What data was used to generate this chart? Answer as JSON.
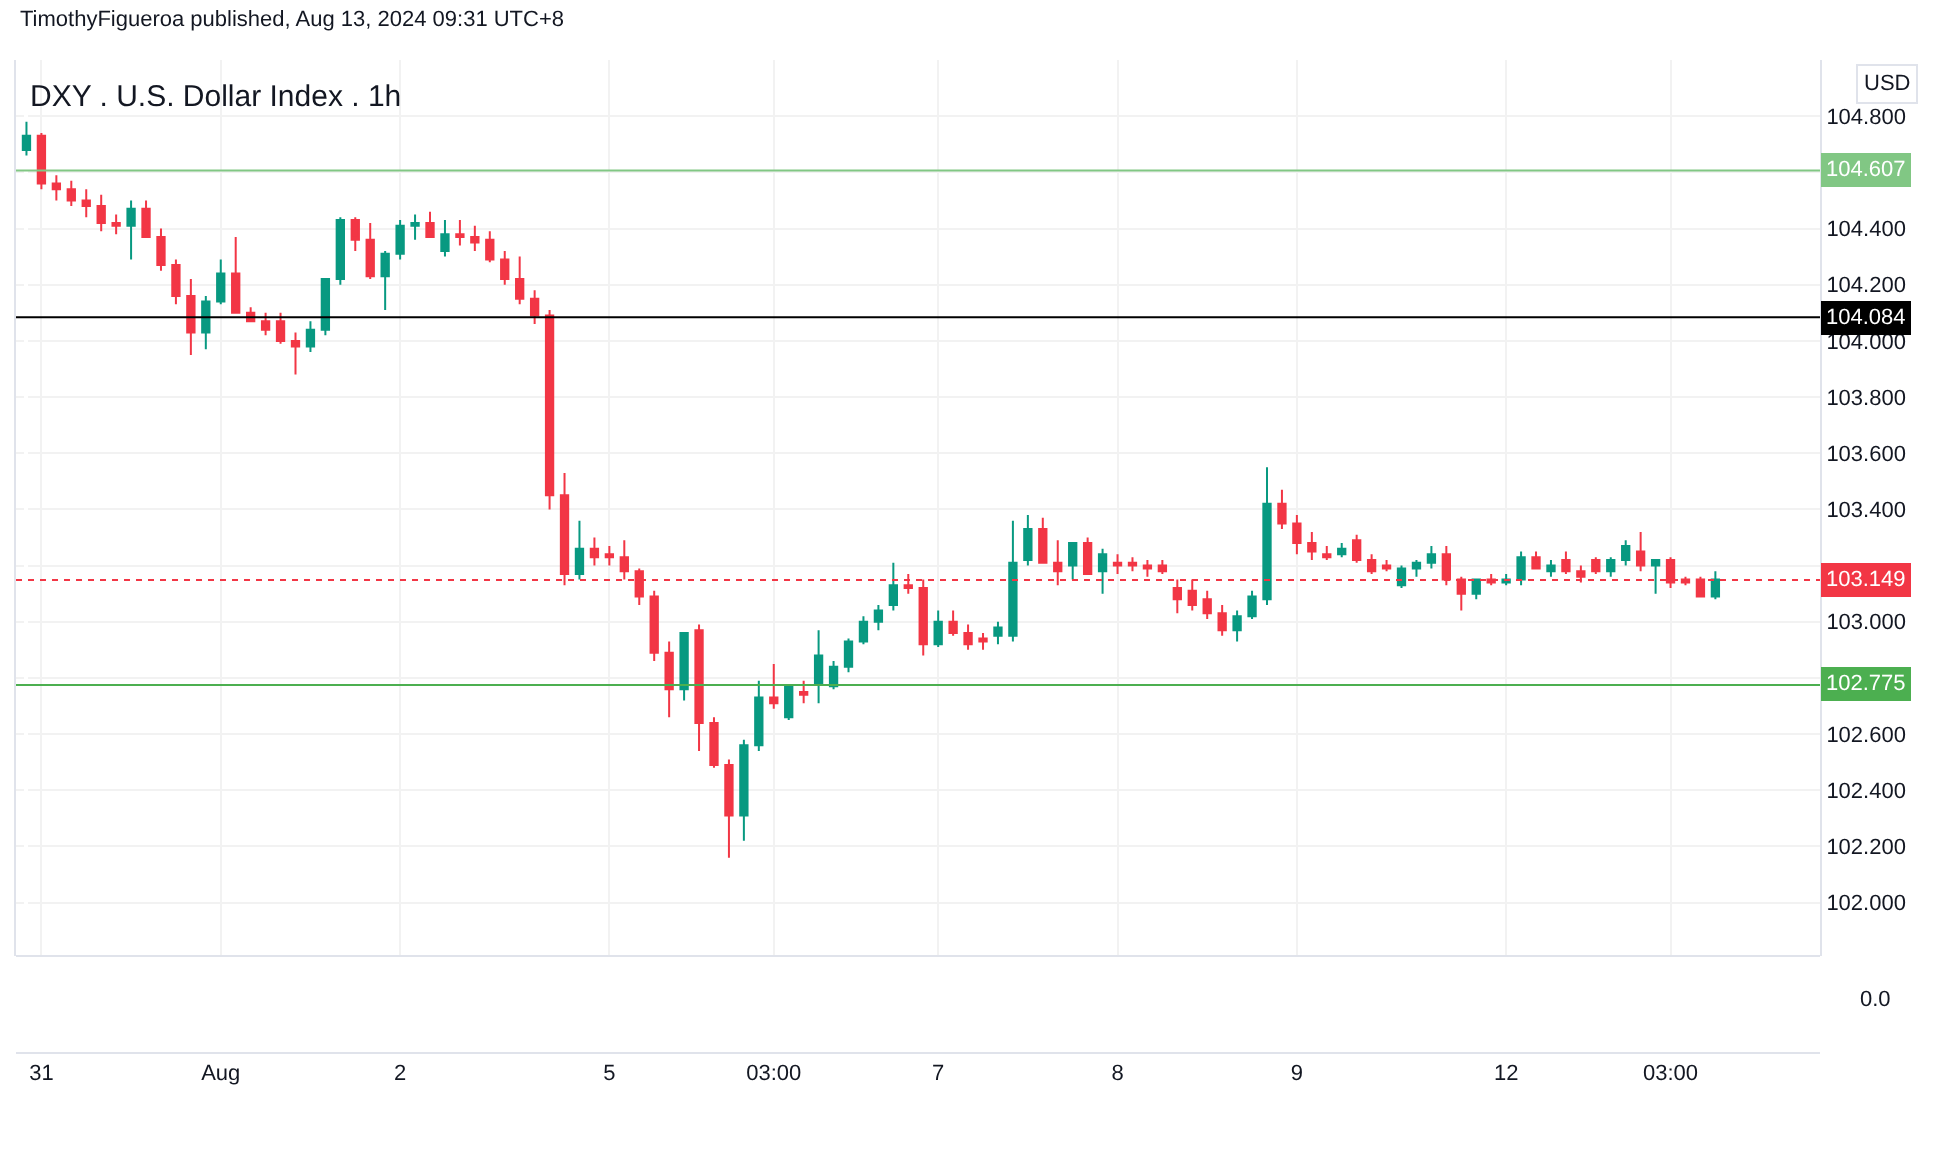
{
  "chart_data": {
    "type": "candlestick",
    "title": "DXY . U.S. Dollar Index . 1h",
    "subtitle": "TimothyFigueroa published, Aug 13, 2024 09:31 UTC+8",
    "categories": [
      null,
      "31",
      null,
      null,
      null,
      null,
      null,
      null,
      null,
      null,
      null,
      null,
      null,
      "Aug",
      null,
      null,
      null,
      null,
      null,
      null,
      null,
      null,
      null,
      null,
      null,
      "2",
      null,
      null,
      null,
      null,
      null,
      null,
      null,
      null,
      null,
      null,
      null,
      null,
      null,
      "5",
      null,
      null,
      null,
      null,
      null,
      null,
      null,
      null,
      null,
      null,
      "03:00",
      null,
      null,
      null,
      null,
      null,
      null,
      null,
      null,
      null,
      null,
      "7",
      null,
      null,
      null,
      null,
      null,
      null,
      null,
      null,
      null,
      null,
      null,
      "8",
      null,
      null,
      null,
      null,
      null,
      null,
      null,
      null,
      null,
      null,
      null,
      "9",
      null,
      null,
      null,
      null,
      null,
      null,
      null,
      null,
      null,
      null,
      null,
      null,
      null,
      "12",
      null,
      null,
      null,
      null,
      null,
      null,
      null,
      null,
      null,
      null,
      "03:00",
      null,
      null,
      null
    ],
    "ohlc": [
      [
        104.68,
        104.78,
        104.66,
        104.73
      ],
      [
        104.73,
        104.74,
        104.54,
        104.56
      ],
      [
        104.56,
        104.59,
        104.5,
        104.54
      ],
      [
        104.54,
        104.57,
        104.48,
        104.5
      ],
      [
        104.5,
        104.54,
        104.44,
        104.48
      ],
      [
        104.48,
        104.52,
        104.39,
        104.42
      ],
      [
        104.42,
        104.45,
        104.38,
        104.41
      ],
      [
        104.41,
        104.5,
        104.29,
        104.47
      ],
      [
        104.47,
        104.5,
        104.37,
        104.37
      ],
      [
        104.37,
        104.4,
        104.25,
        104.27
      ],
      [
        104.27,
        104.29,
        104.13,
        104.16
      ],
      [
        104.16,
        104.22,
        103.95,
        104.03
      ],
      [
        104.03,
        104.16,
        103.97,
        104.14
      ],
      [
        104.14,
        104.29,
        104.13,
        104.24
      ],
      [
        104.24,
        104.37,
        104.1,
        104.1
      ],
      [
        104.1,
        104.12,
        104.07,
        104.07
      ],
      [
        104.07,
        104.1,
        104.02,
        104.04
      ],
      [
        104.07,
        104.1,
        103.99,
        104.0
      ],
      [
        104.0,
        104.03,
        103.88,
        103.98
      ],
      [
        103.98,
        104.07,
        103.96,
        104.04
      ],
      [
        104.04,
        104.22,
        104.02,
        104.22
      ],
      [
        104.22,
        104.44,
        104.2,
        104.43
      ],
      [
        104.43,
        104.44,
        104.32,
        104.36
      ],
      [
        104.36,
        104.42,
        104.22,
        104.23
      ],
      [
        104.23,
        104.32,
        104.11,
        104.31
      ],
      [
        104.31,
        104.43,
        104.29,
        104.41
      ],
      [
        104.41,
        104.45,
        104.36,
        104.42
      ],
      [
        104.42,
        104.46,
        104.37,
        104.37
      ],
      [
        104.32,
        104.43,
        104.3,
        104.38
      ],
      [
        104.38,
        104.43,
        104.34,
        104.37
      ],
      [
        104.37,
        104.41,
        104.32,
        104.35
      ],
      [
        104.36,
        104.39,
        104.28,
        104.29
      ],
      [
        104.29,
        104.32,
        104.2,
        104.22
      ],
      [
        104.22,
        104.3,
        104.13,
        104.15
      ],
      [
        104.15,
        104.18,
        104.06,
        104.09
      ],
      [
        104.09,
        104.11,
        103.4,
        103.45
      ],
      [
        103.45,
        103.53,
        103.13,
        103.17
      ],
      [
        103.17,
        103.36,
        103.15,
        103.26
      ],
      [
        103.26,
        103.3,
        103.2,
        103.23
      ],
      [
        103.24,
        103.27,
        103.2,
        103.23
      ],
      [
        103.23,
        103.29,
        103.15,
        103.18
      ],
      [
        103.18,
        103.19,
        103.06,
        103.09
      ],
      [
        103.09,
        103.11,
        102.86,
        102.89
      ],
      [
        102.89,
        102.93,
        102.66,
        102.76
      ],
      [
        102.76,
        102.96,
        102.72,
        102.96
      ],
      [
        102.97,
        102.99,
        102.54,
        102.64
      ],
      [
        102.64,
        102.66,
        102.48,
        102.49
      ],
      [
        102.49,
        102.51,
        102.16,
        102.31
      ],
      [
        102.31,
        102.58,
        102.22,
        102.56
      ],
      [
        102.56,
        102.79,
        102.54,
        102.73
      ],
      [
        102.73,
        102.85,
        102.69,
        102.71
      ],
      [
        102.66,
        102.77,
        102.65,
        102.77
      ],
      [
        102.75,
        102.79,
        102.71,
        102.74
      ],
      [
        102.78,
        102.97,
        102.71,
        102.88
      ],
      [
        102.77,
        102.86,
        102.76,
        102.84
      ],
      [
        102.84,
        102.94,
        102.82,
        102.93
      ],
      [
        102.93,
        103.02,
        102.92,
        103.0
      ],
      [
        103.0,
        103.06,
        102.97,
        103.04
      ],
      [
        103.06,
        103.21,
        103.04,
        103.13
      ],
      [
        103.13,
        103.17,
        103.1,
        103.12
      ],
      [
        103.12,
        103.15,
        102.88,
        102.92
      ],
      [
        102.92,
        103.04,
        102.91,
        103.0
      ],
      [
        103.0,
        103.04,
        102.95,
        102.96
      ],
      [
        102.96,
        102.99,
        102.9,
        102.92
      ],
      [
        102.94,
        102.96,
        102.9,
        102.93
      ],
      [
        102.95,
        103.0,
        102.92,
        102.98
      ],
      [
        102.95,
        103.36,
        102.93,
        103.21
      ],
      [
        103.22,
        103.38,
        103.2,
        103.33
      ],
      [
        103.33,
        103.37,
        103.21,
        103.21
      ],
      [
        103.21,
        103.29,
        103.13,
        103.18
      ],
      [
        103.2,
        103.28,
        103.15,
        103.28
      ],
      [
        103.28,
        103.3,
        103.17,
        103.17
      ],
      [
        103.18,
        103.26,
        103.1,
        103.24
      ],
      [
        103.21,
        103.24,
        103.17,
        103.2
      ],
      [
        103.21,
        103.23,
        103.18,
        103.2
      ],
      [
        103.2,
        103.22,
        103.16,
        103.19
      ],
      [
        103.2,
        103.22,
        103.17,
        103.18
      ],
      [
        103.12,
        103.15,
        103.03,
        103.08
      ],
      [
        103.11,
        103.15,
        103.04,
        103.06
      ],
      [
        103.08,
        103.11,
        103.01,
        103.03
      ],
      [
        103.03,
        103.06,
        102.95,
        102.97
      ],
      [
        102.97,
        103.04,
        102.93,
        103.02
      ],
      [
        103.02,
        103.11,
        103.01,
        103.09
      ],
      [
        103.08,
        103.55,
        103.06,
        103.42
      ],
      [
        103.42,
        103.47,
        103.33,
        103.35
      ],
      [
        103.35,
        103.38,
        103.24,
        103.28
      ],
      [
        103.28,
        103.32,
        103.22,
        103.25
      ],
      [
        103.24,
        103.27,
        103.22,
        103.23
      ],
      [
        103.24,
        103.28,
        103.23,
        103.26
      ],
      [
        103.29,
        103.31,
        103.21,
        103.22
      ],
      [
        103.22,
        103.24,
        103.17,
        103.18
      ],
      [
        103.2,
        103.22,
        103.18,
        103.19
      ],
      [
        103.13,
        103.2,
        103.12,
        103.19
      ],
      [
        103.19,
        103.22,
        103.16,
        103.21
      ],
      [
        103.21,
        103.27,
        103.19,
        103.24
      ],
      [
        103.24,
        103.27,
        103.13,
        103.15
      ],
      [
        103.15,
        103.16,
        103.04,
        103.1
      ],
      [
        103.1,
        103.15,
        103.08,
        103.15
      ],
      [
        103.15,
        103.17,
        103.13,
        103.14
      ],
      [
        103.14,
        103.17,
        103.13,
        103.15
      ],
      [
        103.15,
        103.25,
        103.13,
        103.23
      ],
      [
        103.23,
        103.25,
        103.19,
        103.19
      ],
      [
        103.18,
        103.22,
        103.16,
        103.2
      ],
      [
        103.22,
        103.25,
        103.17,
        103.18
      ],
      [
        103.18,
        103.2,
        103.14,
        103.16
      ],
      [
        103.22,
        103.23,
        103.17,
        103.18
      ],
      [
        103.18,
        103.23,
        103.16,
        103.22
      ],
      [
        103.22,
        103.29,
        103.2,
        103.27
      ],
      [
        103.25,
        103.32,
        103.18,
        103.2
      ],
      [
        103.2,
        103.22,
        103.1,
        103.22
      ],
      [
        103.22,
        103.23,
        103.12,
        103.14
      ],
      [
        103.15,
        103.16,
        103.13,
        103.14
      ],
      [
        103.15,
        103.16,
        103.09,
        103.09
      ],
      [
        103.09,
        103.18,
        103.08,
        103.15
      ]
    ],
    "colors": [
      "#089981",
      "#f23645",
      "#f23645",
      "#f23645",
      "#f23645",
      "#f23645",
      "#f23645",
      "#089981",
      "#f23645",
      "#f23645",
      "#f23645",
      "#f23645",
      "#089981",
      "#089981",
      "#f23645",
      "#f23645",
      "#f23645",
      "#f23645",
      "#f23645",
      "#089981",
      "#089981",
      "#089981",
      "#f23645",
      "#f23645",
      "#089981",
      "#089981",
      "#089981",
      "#f23645",
      "#089981",
      "#f23645",
      "#f23645",
      "#f23645",
      "#f23645",
      "#f23645",
      "#f23645",
      "#f23645",
      "#f23645",
      "#089981",
      "#f23645",
      "#f23645",
      "#f23645",
      "#f23645",
      "#f23645",
      "#f23645",
      "#089981",
      "#f23645",
      "#f23645",
      "#f23645",
      "#089981",
      "#089981",
      "#f23645",
      "#089981",
      "#f23645",
      "#089981",
      "#089981",
      "#089981",
      "#089981",
      "#089981",
      "#089981",
      "#f23645",
      "#f23645",
      "#089981",
      "#f23645",
      "#f23645",
      "#f23645",
      "#089981",
      "#089981",
      "#089981",
      "#f23645",
      "#f23645",
      "#089981",
      "#f23645",
      "#089981",
      "#f23645",
      "#f23645",
      "#f23645",
      "#f23645",
      "#f23645",
      "#f23645",
      "#f23645",
      "#f23645",
      "#089981",
      "#089981",
      "#089981",
      "#f23645",
      "#f23645",
      "#f23645",
      "#f23645",
      "#089981",
      "#f23645",
      "#f23645",
      "#f23645",
      "#089981",
      "#089981",
      "#089981",
      "#f23645",
      "#f23645",
      "#089981",
      "#f23645",
      "#089981",
      "#089981",
      "#f23645",
      "#089981",
      "#f23645",
      "#f23645",
      "#f23645",
      "#089981",
      "#089981",
      "#f23645",
      "#089981",
      "#f23645",
      "#f23645",
      "#f23645",
      "#089981"
    ],
    "ylim": [
      101.81,
      105.0
    ],
    "yticks": [
      {
        "value": 102.0,
        "label": "102.000"
      },
      {
        "value": 102.2,
        "label": "102.200"
      },
      {
        "value": 102.4,
        "label": "102.400"
      },
      {
        "value": 102.6,
        "label": "102.600"
      },
      {
        "value": 102.8,
        "label": null
      },
      {
        "value": 103.0,
        "label": "103.000"
      },
      {
        "value": 103.2,
        "label": null
      },
      {
        "value": 103.4,
        "label": "103.400"
      },
      {
        "value": 103.6,
        "label": "103.600"
      },
      {
        "value": 103.8,
        "label": "103.800"
      },
      {
        "value": 104.0,
        "label": "104.000"
      },
      {
        "value": 104.2,
        "label": "104.200"
      },
      {
        "value": 104.4,
        "label": "104.400"
      },
      {
        "value": 104.6,
        "label": null
      },
      {
        "value": 104.8,
        "label": "104.800"
      }
    ],
    "ref_lines": [
      {
        "axis": "y",
        "value": 104.607,
        "label": "104.607",
        "color": "#81c784",
        "line_style": "solid"
      },
      {
        "axis": "y",
        "value": 104.084,
        "label": "104.084",
        "color": "#000000",
        "line_style": "solid"
      },
      {
        "axis": "y",
        "value": 103.149,
        "label": "103.149",
        "color": "#f23645",
        "line_style": "dotted"
      },
      {
        "axis": "y",
        "value": 102.775,
        "label": "102.775",
        "color": "#4caf50",
        "line_style": "solid"
      }
    ],
    "annotations": [
      "USD",
      "0.0"
    ],
    "grid": true
  }
}
